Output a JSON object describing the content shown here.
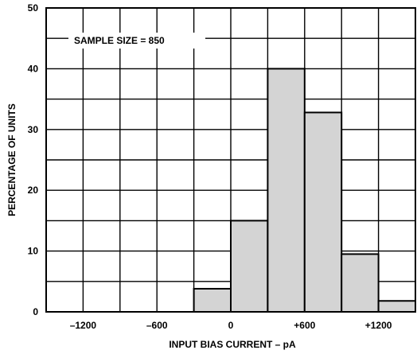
{
  "chart_data": {
    "type": "bar",
    "title": "",
    "xlabel": "INPUT BIAS CURRENT – pA",
    "ylabel": "PERCENTAGE OF UNITS",
    "annotation": "SAMPLE SIZE = 850",
    "xlim": [
      -1500,
      1500
    ],
    "ylim": [
      0,
      50
    ],
    "grid": true,
    "x_ticks": [
      {
        "value": -1200,
        "label": "–1200"
      },
      {
        "value": -600,
        "label": "–600"
      },
      {
        "value": 0,
        "label": "0"
      },
      {
        "value": 600,
        "label": "+600"
      },
      {
        "value": 1200,
        "label": "+1200"
      }
    ],
    "y_ticks": [
      {
        "value": 0,
        "label": "0"
      },
      {
        "value": 10,
        "label": "10"
      },
      {
        "value": 20,
        "label": "20"
      },
      {
        "value": 30,
        "label": "30"
      },
      {
        "value": 40,
        "label": "40"
      },
      {
        "value": 50,
        "label": "50"
      }
    ],
    "bins": [
      {
        "from": -300,
        "to": 0,
        "value": 3.8
      },
      {
        "from": 0,
        "to": 300,
        "value": 15
      },
      {
        "from": 300,
        "to": 600,
        "value": 40
      },
      {
        "from": 600,
        "to": 900,
        "value": 32.8
      },
      {
        "from": 900,
        "to": 1200,
        "value": 9.5
      },
      {
        "from": 1200,
        "to": 1500,
        "value": 1.8
      }
    ],
    "colors": {
      "bar_fill": "#d4d4d4",
      "line": "#000000",
      "background": "#ffffff"
    }
  }
}
